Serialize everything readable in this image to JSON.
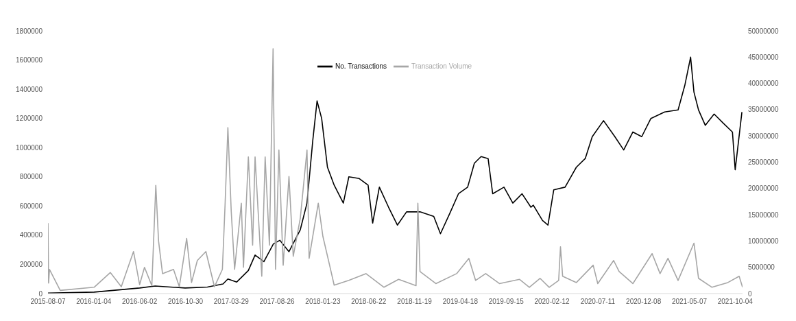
{
  "chart_data": {
    "type": "line",
    "legend": "top",
    "grid": false,
    "line_style": "solid",
    "marker": "none",
    "xlim": [
      "2015-08-07",
      "2021-10-28"
    ],
    "xticks": [
      "2015-08-07",
      "2016-01-04",
      "2016-06-02",
      "2016-10-30",
      "2017-03-29",
      "2017-08-26",
      "2018-01-23",
      "2018-06-22",
      "2018-11-19",
      "2019-04-18",
      "2019-09-15",
      "2020-02-12",
      "2020-07-11",
      "2020-12-08",
      "2021-05-07",
      "2021-10-04"
    ],
    "ylim": [
      0,
      1800000
    ],
    "yticks": [
      0,
      200000,
      400000,
      600000,
      800000,
      1000000,
      1200000,
      1400000,
      1600000,
      1800000
    ],
    "y2lim": [
      0,
      50000000
    ],
    "y2ticks": [
      0,
      5000000,
      10000000,
      15000000,
      20000000,
      25000000,
      30000000,
      35000000,
      40000000,
      45000000,
      50000000
    ],
    "series": [
      {
        "name": "No. Transactions",
        "color": "#000000",
        "axis": "y",
        "x": [
          "2015-08-07",
          "2016-01-05",
          "2016-06-02",
          "2016-07-23",
          "2016-10-29",
          "2017-01-10",
          "2017-03-02",
          "2017-03-18",
          "2017-04-16",
          "2017-05-24",
          "2017-06-15",
          "2017-07-14",
          "2017-08-14",
          "2017-09-04",
          "2017-10-04",
          "2017-11-10",
          "2017-12-02",
          "2017-12-21",
          "2018-01-04",
          "2018-01-19",
          "2018-02-07",
          "2018-03-01",
          "2018-03-31",
          "2018-04-18",
          "2018-05-22",
          "2018-06-20",
          "2018-07-05",
          "2018-07-27",
          "2018-08-26",
          "2018-09-24",
          "2018-10-24",
          "2018-12-07",
          "2019-01-21",
          "2019-02-12",
          "2019-03-14",
          "2019-04-12",
          "2019-05-12",
          "2019-06-03",
          "2019-06-25",
          "2019-07-18",
          "2019-08-02",
          "2019-09-08",
          "2019-10-07",
          "2019-11-06",
          "2019-12-05",
          "2019-12-13",
          "2020-01-12",
          "2020-01-30",
          "2020-02-18",
          "2020-03-26",
          "2020-05-02",
          "2020-05-31",
          "2020-06-23",
          "2020-07-30",
          "2020-09-05",
          "2020-10-04",
          "2020-11-03",
          "2020-12-02",
          "2021-01-01",
          "2021-02-15",
          "2021-03-31",
          "2021-04-22",
          "2021-05-11",
          "2021-05-22",
          "2021-06-06",
          "2021-06-28",
          "2021-07-27",
          "2021-08-26",
          "2021-09-25",
          "2021-10-04",
          "2021-10-26"
        ],
        "values": [
          3000,
          10000,
          38000,
          52000,
          38000,
          45000,
          66000,
          100000,
          79000,
          158000,
          264000,
          219000,
          340000,
          365000,
          287000,
          437000,
          620000,
          1050000,
          1320000,
          1200000,
          866000,
          743000,
          620000,
          800000,
          788000,
          743000,
          483000,
          729000,
          592000,
          469000,
          560000,
          560000,
          529000,
          410000,
          547000,
          684000,
          729000,
          893000,
          939000,
          925000,
          684000,
          729000,
          620000,
          684000,
          592000,
          606000,
          501000,
          469000,
          711000,
          729000,
          866000,
          925000,
          1075000,
          1185000,
          1075000,
          984000,
          1107000,
          1075000,
          1200000,
          1244000,
          1258000,
          1426000,
          1620000,
          1380000,
          1258000,
          1153000,
          1230000,
          1167000,
          1107000,
          848000,
          1244000
        ]
      },
      {
        "name": "Transaction Volume",
        "color": "#a6a6a6",
        "axis": "y2",
        "x": [
          "2015-08-07",
          "2015-08-09",
          "2015-08-12",
          "2015-09-16",
          "2016-01-05",
          "2016-02-27",
          "2016-04-03",
          "2016-05-13",
          "2016-06-02",
          "2016-06-18",
          "2016-07-12",
          "2016-07-25",
          "2016-08-03",
          "2016-08-16",
          "2016-09-21",
          "2016-10-10",
          "2016-11-03",
          "2016-11-19",
          "2016-12-08",
          "2017-01-05",
          "2017-02-02",
          "2017-02-28",
          "2017-03-09",
          "2017-03-18",
          "2017-03-29",
          "2017-04-09",
          "2017-05-01",
          "2017-05-08",
          "2017-05-24",
          "2017-06-07",
          "2017-06-15",
          "2017-07-07",
          "2017-07-18",
          "2017-08-01",
          "2017-08-13",
          "2017-08-21",
          "2017-09-01",
          "2017-09-15",
          "2017-10-04",
          "2017-10-18",
          "2017-11-10",
          "2017-12-02",
          "2017-12-09",
          "2018-01-08",
          "2018-01-23",
          "2018-02-14",
          "2018-03-01",
          "2018-04-18",
          "2018-06-13",
          "2018-08-11",
          "2018-09-28",
          "2018-11-24",
          "2018-11-30",
          "2018-12-07",
          "2019-01-28",
          "2019-04-06",
          "2019-05-16",
          "2019-06-07",
          "2019-07-10",
          "2019-08-24",
          "2019-10-29",
          "2019-11-30",
          "2020-01-04",
          "2020-02-03",
          "2020-03-05",
          "2020-03-11",
          "2020-03-18",
          "2020-05-02",
          "2020-06-26",
          "2020-07-11",
          "2020-09-01",
          "2020-09-19",
          "2020-11-03",
          "2021-01-05",
          "2021-01-31",
          "2021-02-26",
          "2021-03-31",
          "2021-05-22",
          "2021-06-06",
          "2021-07-20",
          "2021-09-10",
          "2021-10-17",
          "2021-10-28"
        ],
        "values": [
          13400000,
          2000000,
          4600000,
          600000,
          1200000,
          4000000,
          1300000,
          8000000,
          1700000,
          5000000,
          1500000,
          20600000,
          10000000,
          3800000,
          4600000,
          1300000,
          10500000,
          2100000,
          6300000,
          8000000,
          1300000,
          4600000,
          17200000,
          31600000,
          15600000,
          4600000,
          17200000,
          5000000,
          26000000,
          9200000,
          26000000,
          3300000,
          26000000,
          9200000,
          46600000,
          4600000,
          27300000,
          5400000,
          22300000,
          7100000,
          14300000,
          27300000,
          6700000,
          17200000,
          10900000,
          5400000,
          1600000,
          2500000,
          3800000,
          1200000,
          2700000,
          1500000,
          17200000,
          4200000,
          1900000,
          3800000,
          6700000,
          2500000,
          3800000,
          1900000,
          2700000,
          1200000,
          2900000,
          1200000,
          2500000,
          8900000,
          3300000,
          2100000,
          5400000,
          1900000,
          6300000,
          4200000,
          1900000,
          7600000,
          3800000,
          6700000,
          2500000,
          9600000,
          2900000,
          1200000,
          2100000,
          3300000,
          1200000
        ]
      }
    ]
  }
}
